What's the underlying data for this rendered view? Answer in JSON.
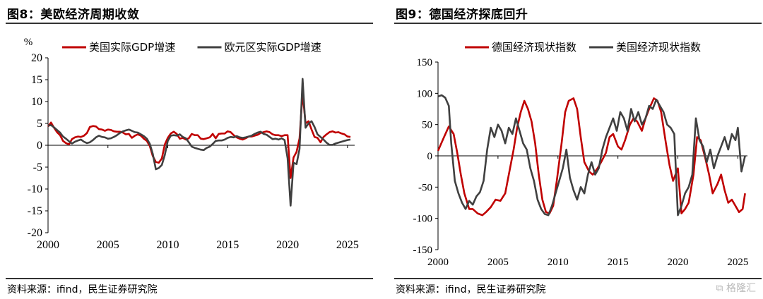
{
  "panels": [
    {
      "title": "图8：美欧经济周期收敛",
      "source": "资料来源：ifind，民生证券研究院",
      "unit_label": "%",
      "chart_data": {
        "type": "line",
        "title": "图8：美欧经济周期收敛",
        "xlabel": "",
        "ylabel": "%",
        "xlim": [
          2000,
          2025.6
        ],
        "ylim": [
          -20,
          20
        ],
        "y_ticks": [
          20,
          15,
          10,
          5,
          0,
          -5,
          -10,
          -15,
          -20
        ],
        "x_ticks": [
          2000,
          2005,
          2010,
          2015,
          2020,
          2025
        ],
        "grid": false,
        "legend": "top",
        "series": [
          {
            "name": "美国实际GDP增速",
            "color": "#c00000",
            "x": [
              2000.0,
              2000.25,
              2000.5,
              2000.75,
              2001.0,
              2001.25,
              2001.5,
              2001.75,
              2002.0,
              2002.25,
              2002.5,
              2002.75,
              2003.0,
              2003.25,
              2003.5,
              2003.75,
              2004.0,
              2004.25,
              2004.5,
              2004.75,
              2005.0,
              2005.25,
              2005.5,
              2005.75,
              2006.0,
              2006.25,
              2006.5,
              2006.75,
              2007.0,
              2007.25,
              2007.5,
              2007.75,
              2008.0,
              2008.25,
              2008.5,
              2008.75,
              2009.0,
              2009.25,
              2009.5,
              2009.75,
              2010.0,
              2010.25,
              2010.5,
              2010.75,
              2011.0,
              2011.25,
              2011.5,
              2011.75,
              2012.0,
              2012.25,
              2012.5,
              2012.75,
              2013.0,
              2013.25,
              2013.5,
              2013.75,
              2014.0,
              2014.25,
              2014.5,
              2014.75,
              2015.0,
              2015.25,
              2015.5,
              2015.75,
              2016.0,
              2016.25,
              2016.5,
              2016.75,
              2017.0,
              2017.25,
              2017.5,
              2017.75,
              2018.0,
              2018.25,
              2018.5,
              2018.75,
              2019.0,
              2019.25,
              2019.5,
              2019.75,
              2020.0,
              2020.25,
              2020.5,
              2020.75,
              2021.0,
              2021.25,
              2021.5,
              2021.75,
              2022.0,
              2022.25,
              2022.5,
              2022.75,
              2023.0,
              2023.25,
              2023.5,
              2023.75,
              2024.0,
              2024.25,
              2024.5,
              2024.75,
              2025.0,
              2025.25
            ],
            "values": [
              4.3,
              5.2,
              4.0,
              3.0,
              2.3,
              1.0,
              0.5,
              0.2,
              1.4,
              1.8,
              2.0,
              1.9,
              2.2,
              2.8,
              4.2,
              4.4,
              4.3,
              3.7,
              3.6,
              3.3,
              3.6,
              3.5,
              3.2,
              3.1,
              3.1,
              2.9,
              2.5,
              2.6,
              1.7,
              2.2,
              2.5,
              2.2,
              1.5,
              1.0,
              -0.2,
              -2.5,
              -3.8,
              -4.0,
              -3.0,
              0.2,
              1.7,
              2.7,
              3.1,
              2.6,
              1.5,
              1.7,
              1.3,
              1.6,
              2.6,
              2.3,
              2.3,
              1.5,
              1.4,
              1.6,
              1.8,
              2.6,
              1.6,
              2.6,
              2.7,
              2.7,
              3.2,
              3.0,
              2.3,
              1.8,
              1.5,
              1.3,
              1.6,
              2.0,
              2.0,
              2.2,
              2.4,
              2.8,
              3.0,
              3.2,
              3.0,
              2.5,
              2.3,
              2.3,
              2.1,
              2.3,
              2.3,
              -7.5,
              -2.8,
              -1.5,
              1.6,
              12.0,
              5.0,
              5.5,
              3.6,
              1.9,
              1.7,
              0.7,
              1.9,
              2.5,
              3.0,
              3.2,
              2.9,
              3.0,
              2.7,
              2.5,
              2.0,
              1.9
            ]
          },
          {
            "name": "欧元区实际GDP增速",
            "color": "#404040",
            "x": [
              2000.0,
              2000.25,
              2000.5,
              2000.75,
              2001.0,
              2001.25,
              2001.5,
              2001.75,
              2002.0,
              2002.25,
              2002.5,
              2002.75,
              2003.0,
              2003.25,
              2003.5,
              2003.75,
              2004.0,
              2004.25,
              2004.5,
              2004.75,
              2005.0,
              2005.25,
              2005.5,
              2005.75,
              2006.0,
              2006.25,
              2006.5,
              2006.75,
              2007.0,
              2007.25,
              2007.5,
              2007.75,
              2008.0,
              2008.25,
              2008.5,
              2008.75,
              2009.0,
              2009.25,
              2009.5,
              2009.75,
              2010.0,
              2010.25,
              2010.5,
              2010.75,
              2011.0,
              2011.25,
              2011.5,
              2011.75,
              2012.0,
              2012.25,
              2012.5,
              2012.75,
              2013.0,
              2013.25,
              2013.5,
              2013.75,
              2014.0,
              2014.25,
              2014.5,
              2014.75,
              2015.0,
              2015.25,
              2015.5,
              2015.75,
              2016.0,
              2016.25,
              2016.5,
              2016.75,
              2017.0,
              2017.25,
              2017.5,
              2017.75,
              2018.0,
              2018.25,
              2018.5,
              2018.75,
              2019.0,
              2019.25,
              2019.5,
              2019.75,
              2020.0,
              2020.25,
              2020.5,
              2020.75,
              2021.0,
              2021.25,
              2021.5,
              2021.75,
              2022.0,
              2022.25,
              2022.5,
              2022.75,
              2023.0,
              2023.25,
              2023.5,
              2023.75,
              2024.0,
              2024.25,
              2024.5,
              2024.75,
              2025.0,
              2025.25
            ],
            "values": [
              4.5,
              4.6,
              4.1,
              3.5,
              2.9,
              2.0,
              1.5,
              0.9,
              0.4,
              0.8,
              1.1,
              1.3,
              0.8,
              0.5,
              0.7,
              1.2,
              1.8,
              2.2,
              1.9,
              1.8,
              1.5,
              1.6,
              1.9,
              2.3,
              2.8,
              3.2,
              3.4,
              3.6,
              3.3,
              3.0,
              2.9,
              2.5,
              2.1,
              1.5,
              0.3,
              -2.0,
              -5.5,
              -5.2,
              -4.5,
              -2.2,
              1.0,
              2.2,
              2.3,
              2.2,
              2.5,
              1.9,
              1.6,
              0.7,
              -0.3,
              -0.6,
              -0.8,
              -1.0,
              -1.1,
              -0.6,
              -0.3,
              0.3,
              1.0,
              1.1,
              1.1,
              1.3,
              1.7,
              1.9,
              1.8,
              2.1,
              1.8,
              1.7,
              1.8,
              2.0,
              2.2,
              2.6,
              2.9,
              3.1,
              2.6,
              2.4,
              1.9,
              1.4,
              1.5,
              1.3,
              1.6,
              1.2,
              -3.0,
              -13.8,
              -4.0,
              -4.3,
              -0.8,
              15.2,
              4.0,
              5.0,
              5.5,
              4.2,
              2.5,
              1.9,
              1.3,
              0.6,
              0.1,
              0.1,
              0.4,
              0.6,
              0.8,
              1.0,
              1.2,
              1.3
            ]
          }
        ]
      }
    },
    {
      "title": "图9：德国经济探底回升",
      "source": "资料来源：ifind，民生证券研究院",
      "chart_data": {
        "type": "line",
        "title": "图9：德国经济探底回升",
        "xlabel": "",
        "ylabel": "",
        "xlim": [
          2000,
          2025.8
        ],
        "ylim": [
          -150,
          150
        ],
        "y_ticks": [
          150,
          100,
          50,
          0,
          -50,
          -100,
          -150
        ],
        "x_ticks": [
          2000,
          2005,
          2010,
          2015,
          2020,
          2025
        ],
        "grid": false,
        "legend": "top",
        "series": [
          {
            "name": "德国经济现状指数",
            "color": "#c00000",
            "x": [
              2000.0,
              2000.5,
              2000.9,
              2001.3,
              2001.6,
              2001.9,
              2002.2,
              2002.6,
              2002.9,
              2003.3,
              2003.7,
              2004.0,
              2004.4,
              2004.8,
              2005.2,
              2005.6,
              2005.9,
              2006.3,
              2006.6,
              2006.9,
              2007.2,
              2007.5,
              2007.8,
              2008.1,
              2008.4,
              2008.7,
              2009.0,
              2009.3,
              2009.6,
              2009.9,
              2010.3,
              2010.6,
              2010.9,
              2011.3,
              2011.6,
              2011.9,
              2012.2,
              2012.6,
              2012.9,
              2013.3,
              2013.6,
              2014.0,
              2014.3,
              2014.6,
              2015.0,
              2015.3,
              2015.6,
              2016.0,
              2016.3,
              2016.6,
              2017.0,
              2017.3,
              2017.6,
              2018.0,
              2018.3,
              2018.6,
              2019.0,
              2019.3,
              2019.6,
              2020.0,
              2020.3,
              2020.6,
              2020.9,
              2021.3,
              2021.6,
              2021.9,
              2022.3,
              2022.6,
              2022.9,
              2023.3,
              2023.6,
              2023.9,
              2024.2,
              2024.5,
              2024.8,
              2025.1,
              2025.4,
              2025.6
            ],
            "values": [
              8,
              30,
              47,
              35,
              5,
              -30,
              -60,
              -85,
              -85,
              -92,
              -95,
              -90,
              -82,
              -70,
              -72,
              -60,
              -30,
              10,
              45,
              70,
              88,
              75,
              55,
              20,
              -30,
              -70,
              -90,
              -92,
              -80,
              -40,
              20,
              70,
              88,
              92,
              75,
              30,
              -10,
              -25,
              -30,
              -20,
              -10,
              5,
              30,
              35,
              15,
              10,
              25,
              50,
              60,
              55,
              40,
              60,
              75,
              92,
              88,
              70,
              20,
              -15,
              -40,
              -20,
              -92,
              -85,
              -75,
              -30,
              30,
              25,
              -5,
              -30,
              -60,
              -45,
              -30,
              -55,
              -75,
              -70,
              -80,
              -90,
              -85,
              -60
            ]
          },
          {
            "name": "美国经济现状指数",
            "color": "#404040",
            "x": [
              2000.0,
              2000.3,
              2000.6,
              2000.9,
              2001.1,
              2001.4,
              2001.7,
              2002.0,
              2002.3,
              2002.6,
              2002.9,
              2003.2,
              2003.5,
              2003.8,
              2004.1,
              2004.4,
              2004.7,
              2005.0,
              2005.3,
              2005.6,
              2005.9,
              2006.2,
              2006.5,
              2006.8,
              2007.1,
              2007.4,
              2007.7,
              2008.0,
              2008.3,
              2008.6,
              2008.9,
              2009.2,
              2009.5,
              2009.8,
              2010.1,
              2010.4,
              2010.7,
              2011.0,
              2011.3,
              2011.6,
              2011.9,
              2012.2,
              2012.5,
              2012.8,
              2013.1,
              2013.4,
              2013.7,
              2014.0,
              2014.3,
              2014.6,
              2014.9,
              2015.2,
              2015.5,
              2015.8,
              2016.1,
              2016.4,
              2016.7,
              2017.0,
              2017.3,
              2017.6,
              2017.9,
              2018.2,
              2018.5,
              2018.8,
              2019.1,
              2019.4,
              2019.7,
              2020.0,
              2020.3,
              2020.6,
              2020.9,
              2021.2,
              2021.5,
              2021.8,
              2022.1,
              2022.4,
              2022.7,
              2023.0,
              2023.3,
              2023.6,
              2023.9,
              2024.2,
              2024.5,
              2024.8,
              2025.0,
              2025.3,
              2025.6
            ],
            "values": [
              95,
              97,
              93,
              80,
              20,
              -40,
              -60,
              -75,
              -85,
              -72,
              -78,
              -65,
              -58,
              -40,
              10,
              45,
              30,
              50,
              40,
              20,
              45,
              35,
              60,
              40,
              20,
              10,
              -20,
              -40,
              -70,
              -85,
              -93,
              -95,
              -80,
              -60,
              -40,
              -20,
              10,
              -35,
              -55,
              -70,
              -50,
              -60,
              -30,
              -10,
              -30,
              -20,
              10,
              30,
              45,
              60,
              40,
              70,
              60,
              40,
              75,
              55,
              70,
              50,
              60,
              80,
              75,
              90,
              80,
              70,
              50,
              45,
              35,
              -95,
              -80,
              -60,
              -50,
              -30,
              60,
              25,
              15,
              -10,
              10,
              -20,
              0,
              15,
              30,
              10,
              35,
              25,
              45,
              -25,
              0
            ]
          }
        ]
      }
    }
  ],
  "watermark": "格隆汇"
}
